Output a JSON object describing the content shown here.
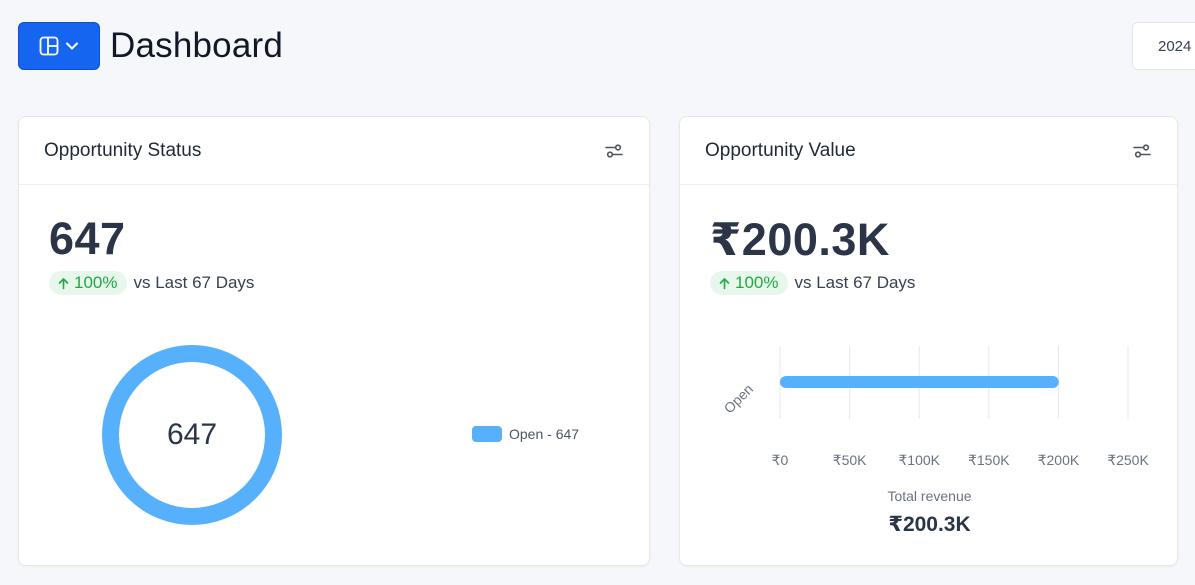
{
  "header": {
    "title": "Dashboard",
    "layout_button_icon": "layout-panel-icon",
    "date_text": "2024"
  },
  "colors": {
    "primary": "#1565f0",
    "series": "#56b0fc",
    "positive": "#22a845",
    "positive_bg": "#e8f7ec"
  },
  "cards": {
    "status": {
      "title": "Opportunity Status",
      "value": "647",
      "trend_percent": "100%",
      "trend_text": "vs Last 67 Days",
      "donut_center": "647",
      "legend": [
        {
          "label": "Open - 647"
        }
      ]
    },
    "value": {
      "title": "Opportunity Value",
      "value": "₹200.3K",
      "trend_percent": "100%",
      "trend_text": "vs Last 67 Days",
      "footer_label": "Total revenue",
      "footer_value": "₹200.3K"
    }
  },
  "chart_data": [
    {
      "type": "pie",
      "categories": [
        "Open - 647"
      ],
      "values": [
        647
      ],
      "center_label": "647"
    },
    {
      "type": "bar",
      "orientation": "horizontal",
      "categories": [
        "Open"
      ],
      "values": [
        200300
      ],
      "xlim": [
        0,
        250000
      ],
      "xticks": [
        0,
        50000,
        100000,
        150000,
        200000,
        250000
      ],
      "xtick_labels": [
        "₹0",
        "₹50K",
        "₹100K",
        "₹150K",
        "₹200K",
        "₹250K"
      ],
      "xlabel": "Total revenue",
      "grid": true
    }
  ]
}
